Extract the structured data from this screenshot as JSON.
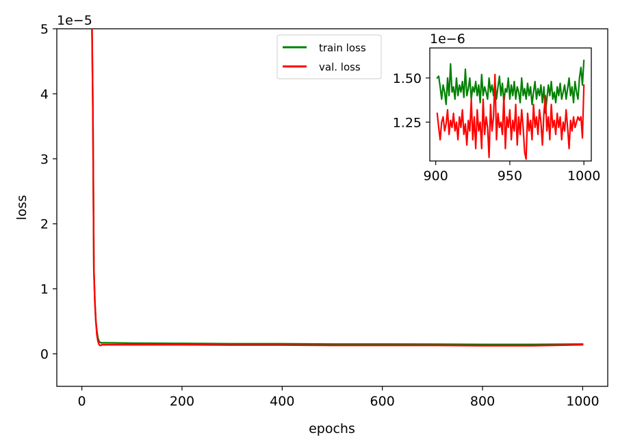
{
  "chart_data": [
    {
      "type": "line",
      "xlabel": "epochs",
      "ylabel": "loss",
      "y_offset_label": "1e−5",
      "xlim": [
        -50,
        1050
      ],
      "ylim": [
        -0.5,
        5
      ],
      "x_ticks": [
        0,
        200,
        400,
        600,
        800,
        1000
      ],
      "x_tick_labels": [
        "0",
        "200",
        "400",
        "600",
        "800",
        "1000"
      ],
      "y_ticks": [
        0,
        1,
        2,
        3,
        4,
        5
      ],
      "y_tick_labels": [
        "0",
        "1",
        "2",
        "3",
        "4",
        "5"
      ],
      "grid": false,
      "legend_position": "top-center",
      "series": [
        {
          "name": "train loss",
          "color": "#008000",
          "x": [
            20,
            22,
            24,
            26,
            28,
            30,
            32,
            34,
            36,
            38,
            40,
            50,
            100,
            200,
            300,
            400,
            500,
            600,
            700,
            800,
            900,
            1000
          ],
          "y": [
            5.2,
            3.8,
            1.3,
            0.8,
            0.5,
            0.35,
            0.25,
            0.2,
            0.18,
            0.17,
            0.17,
            0.17,
            0.165,
            0.16,
            0.155,
            0.155,
            0.15,
            0.15,
            0.148,
            0.145,
            0.145,
            0.15
          ]
        },
        {
          "name": "val. loss",
          "color": "#ff0000",
          "x": [
            20,
            22,
            24,
            26,
            28,
            30,
            32,
            34,
            36,
            38,
            40,
            50,
            100,
            200,
            300,
            400,
            500,
            600,
            700,
            800,
            900,
            1000
          ],
          "y": [
            5.2,
            3.8,
            1.3,
            0.8,
            0.5,
            0.3,
            0.2,
            0.15,
            0.13,
            0.13,
            0.14,
            0.14,
            0.14,
            0.14,
            0.135,
            0.135,
            0.13,
            0.13,
            0.13,
            0.125,
            0.125,
            0.14
          ]
        }
      ]
    },
    {
      "type": "line",
      "role": "inset",
      "y_offset_label": "1e−6",
      "xlim": [
        896,
        1005
      ],
      "ylim": [
        1.03,
        1.67
      ],
      "x_ticks": [
        900,
        950,
        1000
      ],
      "x_tick_labels": [
        "900",
        "950",
        "1000"
      ],
      "y_ticks": [
        1.25,
        1.5
      ],
      "y_tick_labels": [
        "1.25",
        "1.50"
      ],
      "series": [
        {
          "name": "train loss",
          "color": "#008000",
          "x": [
            901,
            902,
            903,
            904,
            905,
            906,
            907,
            908,
            909,
            910,
            911,
            912,
            913,
            914,
            915,
            916,
            917,
            918,
            919,
            920,
            921,
            922,
            923,
            924,
            925,
            926,
            927,
            928,
            929,
            930,
            931,
            932,
            933,
            934,
            935,
            936,
            937,
            938,
            939,
            940,
            941,
            942,
            943,
            944,
            945,
            946,
            947,
            948,
            949,
            950,
            951,
            952,
            953,
            954,
            955,
            956,
            957,
            958,
            959,
            960,
            961,
            962,
            963,
            964,
            965,
            966,
            967,
            968,
            969,
            970,
            971,
            972,
            973,
            974,
            975,
            976,
            977,
            978,
            979,
            980,
            981,
            982,
            983,
            984,
            985,
            986,
            987,
            988,
            989,
            990,
            991,
            992,
            993,
            994,
            995,
            996,
            997,
            998,
            999,
            1000
          ],
          "y": [
            1.5,
            1.51,
            1.45,
            1.38,
            1.46,
            1.42,
            1.35,
            1.5,
            1.4,
            1.58,
            1.42,
            1.45,
            1.38,
            1.5,
            1.4,
            1.46,
            1.42,
            1.48,
            1.39,
            1.55,
            1.4,
            1.44,
            1.5,
            1.38,
            1.45,
            1.42,
            1.48,
            1.4,
            1.46,
            1.36,
            1.52,
            1.4,
            1.45,
            1.42,
            1.38,
            1.5,
            1.42,
            1.46,
            1.4,
            1.48,
            1.38,
            1.45,
            1.51,
            1.4,
            1.47,
            1.36,
            1.44,
            1.42,
            1.5,
            1.38,
            1.46,
            1.4,
            1.48,
            1.38,
            1.45,
            1.42,
            1.36,
            1.5,
            1.4,
            1.44,
            1.38,
            1.47,
            1.4,
            1.45,
            1.35,
            1.42,
            1.48,
            1.38,
            1.44,
            1.4,
            1.46,
            1.36,
            1.45,
            1.3,
            1.38,
            1.46,
            1.4,
            1.48,
            1.38,
            1.42,
            1.36,
            1.45,
            1.4,
            1.47,
            1.38,
            1.42,
            1.46,
            1.38,
            1.44,
            1.5,
            1.4,
            1.45,
            1.36,
            1.48,
            1.42,
            1.38,
            1.5,
            1.56,
            1.46,
            1.6
          ]
        },
        {
          "name": "val. loss",
          "color": "#ff0000",
          "x": [
            901,
            902,
            903,
            904,
            905,
            906,
            907,
            908,
            909,
            910,
            911,
            912,
            913,
            914,
            915,
            916,
            917,
            918,
            919,
            920,
            921,
            922,
            923,
            924,
            925,
            926,
            927,
            928,
            929,
            930,
            931,
            932,
            933,
            934,
            935,
            936,
            937,
            938,
            939,
            940,
            941,
            942,
            943,
            944,
            945,
            946,
            947,
            948,
            949,
            950,
            951,
            952,
            953,
            954,
            955,
            956,
            957,
            958,
            959,
            960,
            961,
            962,
            963,
            964,
            965,
            966,
            967,
            968,
            969,
            970,
            971,
            972,
            973,
            974,
            975,
            976,
            977,
            978,
            979,
            980,
            981,
            982,
            983,
            984,
            985,
            986,
            987,
            988,
            989,
            990,
            991,
            992,
            993,
            994,
            995,
            996,
            997,
            998,
            999,
            1000
          ],
          "y": [
            1.3,
            1.22,
            1.15,
            1.25,
            1.28,
            1.2,
            1.24,
            1.32,
            1.18,
            1.26,
            1.22,
            1.3,
            1.2,
            1.25,
            1.15,
            1.28,
            1.22,
            1.32,
            1.18,
            1.24,
            1.12,
            1.26,
            1.2,
            1.38,
            1.15,
            1.28,
            1.1,
            1.32,
            1.2,
            1.25,
            1.1,
            1.38,
            1.18,
            1.28,
            1.22,
            1.05,
            1.35,
            1.2,
            1.28,
            1.52,
            1.15,
            1.3,
            1.22,
            1.25,
            1.18,
            1.4,
            1.1,
            1.28,
            1.22,
            1.32,
            1.15,
            1.26,
            1.2,
            1.35,
            1.12,
            1.28,
            1.18,
            1.32,
            1.22,
            1.08,
            1.04,
            1.3,
            1.2,
            1.26,
            1.15,
            1.35,
            1.22,
            1.28,
            1.18,
            1.32,
            1.25,
            1.12,
            1.3,
            1.4,
            1.2,
            1.28,
            1.15,
            1.35,
            1.22,
            1.26,
            1.18,
            1.3,
            1.22,
            1.28,
            1.15,
            1.25,
            1.2,
            1.32,
            1.22,
            1.1,
            1.26,
            1.2,
            1.28,
            1.22,
            1.25,
            1.28,
            1.26,
            1.28,
            1.16,
            1.46
          ]
        }
      ]
    }
  ]
}
